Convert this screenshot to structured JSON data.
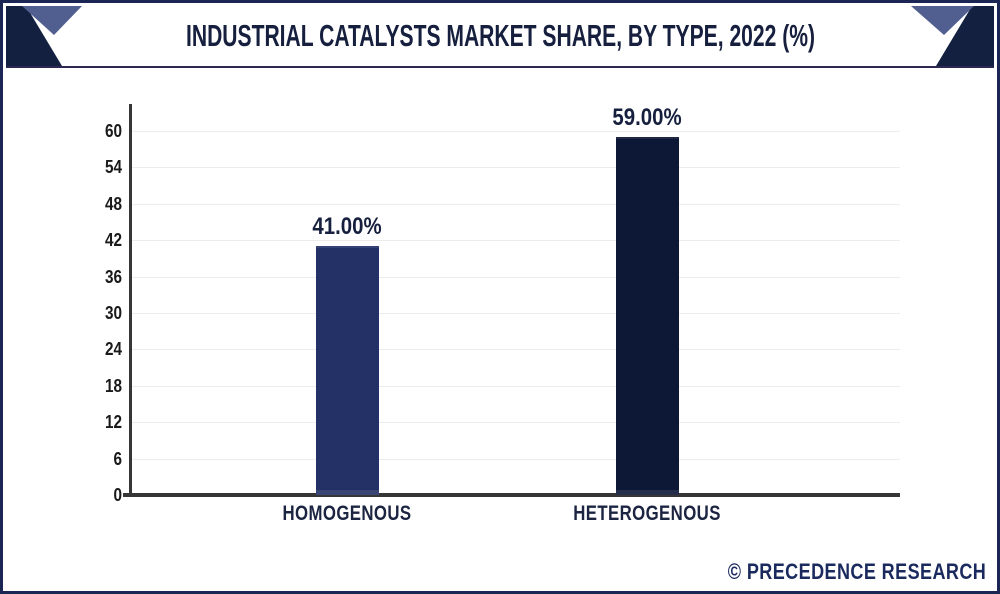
{
  "header": {
    "title": "INDUSTRIAL CATALYSTS MARKET SHARE, BY TYPE, 2022 (%)"
  },
  "footer": {
    "watermark": "© PRECEDENCE RESEARCH"
  },
  "colors": {
    "border": "#1b2655",
    "corner_dark": "#13203f",
    "corner_slate": "#515e90",
    "title_text": "#16203e",
    "axis": "#363636",
    "gridline": "#ececec",
    "tick_text": "#1a1a1a",
    "category_text": "#1b2440",
    "watermark_text": "#1b2a5e"
  },
  "chart_data": {
    "type": "bar",
    "title": "INDUSTRIAL CATALYSTS MARKET SHARE, BY TYPE, 2022 (%)",
    "categories": [
      "HOMOGENOUS",
      "HETEROGENOUS"
    ],
    "values": [
      41,
      59
    ],
    "data_labels": [
      "41.00%",
      "59.00%"
    ],
    "bar_colors": [
      "#233166",
      "#0d1736"
    ],
    "xlabel": "",
    "ylabel": "",
    "ylim": [
      0,
      60
    ],
    "yticks": [
      0,
      6,
      12,
      18,
      24,
      30,
      36,
      42,
      48,
      54,
      60
    ],
    "grid": true,
    "legend": false
  }
}
